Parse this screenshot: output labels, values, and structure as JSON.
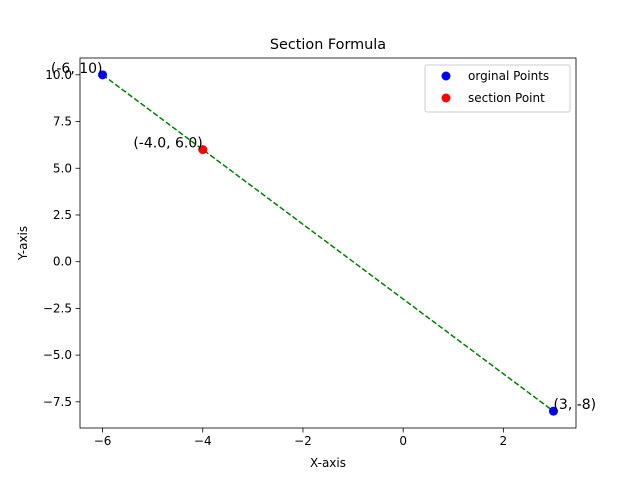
{
  "chart_data": {
    "type": "scatter",
    "title": "Section Formula",
    "xlabel": "X-axis",
    "ylabel": "Y-axis",
    "xlim": [
      -6.45,
      3.45
    ],
    "ylim": [
      -8.9,
      10.9
    ],
    "xticks": [
      -6,
      -4,
      -2,
      0,
      2
    ],
    "xtick_labels": [
      "−6",
      "−4",
      "−2",
      "0",
      "2"
    ],
    "yticks": [
      -7.5,
      -5.0,
      -2.5,
      0.0,
      2.5,
      5.0,
      7.5,
      10.0
    ],
    "ytick_labels": [
      "−7.5",
      "−5.0",
      "−2.5",
      "0.0",
      "2.5",
      "5.0",
      "7.5",
      "10.0"
    ],
    "grid": false,
    "legend_position": "top-right",
    "line": {
      "x": [
        -6,
        3
      ],
      "y": [
        10,
        -8
      ],
      "color": "#008000",
      "style": "dashed"
    },
    "series": [
      {
        "name": "orginal Points",
        "color": "#0000ff",
        "points": [
          {
            "x": -6,
            "y": 10,
            "label": "(-6, 10)"
          },
          {
            "x": 3,
            "y": -8,
            "label": "(3, -8)"
          }
        ]
      },
      {
        "name": "section Point",
        "color": "#ff0000",
        "points": [
          {
            "x": -4.0,
            "y": 6.0,
            "label": "(-4.0, 6.0)"
          }
        ]
      }
    ]
  }
}
